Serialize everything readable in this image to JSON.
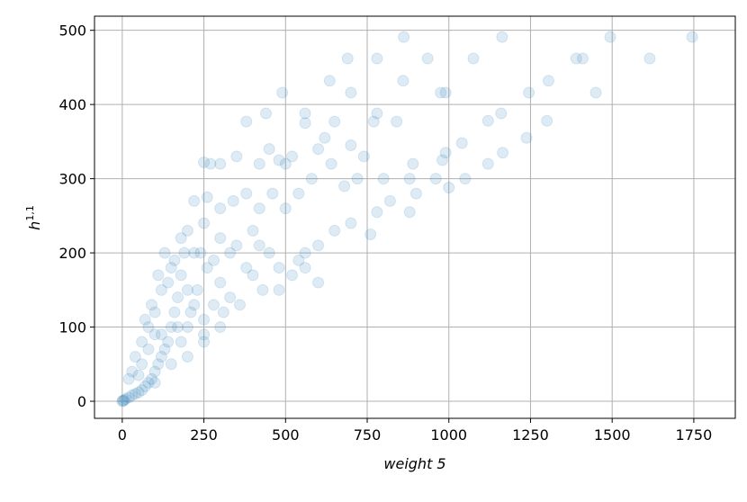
{
  "chart_data": {
    "type": "scatter",
    "x_label": "weight 5",
    "y_label": "h",
    "y_label_sup": "1,1",
    "xlim": [
      -85,
      1877
    ],
    "ylim": [
      -23,
      519
    ],
    "xticks": [
      0,
      250,
      500,
      750,
      1000,
      1250,
      1500,
      1750
    ],
    "yticks": [
      0,
      100,
      200,
      300,
      400,
      500
    ],
    "grid": true,
    "series": [
      {
        "color": "#1f77b4",
        "x": [
          862,
          1163,
          1494,
          1745,
          690,
          780,
          935,
          1075,
          1390,
          1410,
          1615,
          490,
          700,
          975,
          990,
          1245,
          1450,
          1305,
          635,
          860,
          440,
          560,
          780,
          1160,
          1120,
          1300,
          380,
          650,
          770,
          840,
          1238,
          1165,
          1120,
          1040,
          990,
          980,
          890,
          1050,
          1000,
          960,
          900,
          880,
          780,
          820,
          700,
          760,
          650,
          600,
          540,
          560,
          800,
          880,
          740,
          700,
          620,
          600,
          560,
          520,
          480,
          420,
          350,
          300,
          270,
          250,
          450,
          500,
          640,
          680,
          720,
          580,
          540,
          500,
          460,
          420,
          380,
          340,
          300,
          260,
          220,
          250,
          300,
          350,
          400,
          450,
          480,
          520,
          560,
          600,
          480,
          430,
          400,
          360,
          330,
          300,
          260,
          230,
          210,
          250,
          280,
          310,
          250,
          200,
          190,
          180,
          170,
          160,
          150,
          140,
          130,
          120,
          110,
          100,
          90,
          80,
          70,
          60,
          50,
          40,
          30,
          20,
          10,
          5,
          2,
          0,
          150,
          120,
          100,
          80,
          60,
          40,
          30,
          20,
          130,
          110,
          90,
          70,
          200,
          220,
          180,
          160,
          140,
          100,
          80,
          60,
          50,
          120,
          170,
          200,
          240,
          280,
          330,
          380,
          420,
          200,
          150,
          100,
          250,
          300,
          180,
          220
        ],
        "values": [
          491,
          491,
          491,
          491,
          462,
          462,
          462,
          462,
          462,
          462,
          462,
          416,
          416,
          416,
          416,
          416,
          416,
          432,
          432,
          432,
          388,
          388,
          388,
          388,
          378,
          378,
          377,
          377,
          377,
          377,
          355,
          335,
          320,
          348,
          335,
          325,
          320,
          300,
          288,
          300,
          280,
          255,
          255,
          270,
          240,
          225,
          230,
          210,
          190,
          200,
          300,
          300,
          330,
          345,
          355,
          340,
          375,
          330,
          325,
          320,
          330,
          320,
          320,
          322,
          340,
          320,
          320,
          290,
          300,
          300,
          280,
          260,
          280,
          260,
          280,
          270,
          260,
          275,
          270,
          240,
          220,
          210,
          230,
          200,
          180,
          170,
          180,
          160,
          150,
          150,
          170,
          130,
          140,
          160,
          180,
          150,
          120,
          110,
          130,
          120,
          90,
          100,
          200,
          170,
          140,
          120,
          100,
          80,
          70,
          60,
          50,
          40,
          30,
          25,
          20,
          15,
          12,
          10,
          8,
          5,
          3,
          1,
          1,
          0,
          180,
          150,
          120,
          100,
          80,
          60,
          40,
          30,
          200,
          170,
          130,
          110,
          230,
          200,
          220,
          190,
          160,
          90,
          70,
          50,
          35,
          90,
          100,
          150,
          200,
          190,
          200,
          180,
          210,
          60,
          50,
          25,
          80,
          100,
          80,
          130
        ]
      }
    ]
  }
}
